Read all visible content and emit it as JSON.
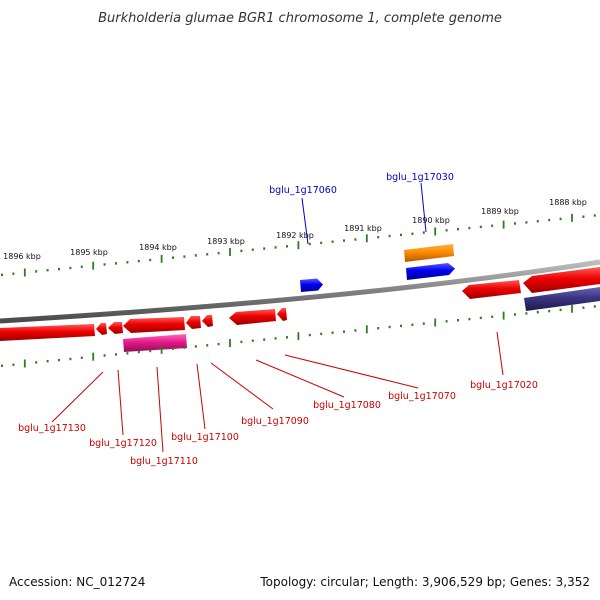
{
  "title": "Burkholderia glumae BGR1 chromosome 1, complete genome",
  "footer": {
    "accession": "Accession: NC_012724",
    "info": "Topology: circular; Length: 3,906,529 bp; Genes: 3,352"
  },
  "colors": {
    "reverse_gene": "#ff0000",
    "forward_gene": "#0000ff",
    "highlight_forward": "#ff8c00",
    "highlight_reverse": "#e6198c",
    "other_reverse": "#3a3582",
    "backbone": "#808080",
    "tick": "#2e7d1e",
    "label_forward": "#0000cc",
    "label_reverse": "#cc0000"
  },
  "kbp_labels": [
    "1896 kbp",
    "1895 kbp",
    "1894 kbp",
    "1893 kbp",
    "1892 kbp",
    "1891 kbp",
    "1890 kbp",
    "1889 kbp",
    "1888 kbp"
  ],
  "genes": [
    {
      "id": "bglu_1g17060",
      "strand": "forward"
    },
    {
      "id": "bglu_1g17030",
      "strand": "forward"
    },
    {
      "id": "bglu_1g17020",
      "strand": "reverse"
    },
    {
      "id": "bglu_1g17070",
      "strand": "reverse"
    },
    {
      "id": "bglu_1g17080",
      "strand": "reverse"
    },
    {
      "id": "bglu_1g17090",
      "strand": "reverse"
    },
    {
      "id": "bglu_1g17100",
      "strand": "reverse"
    },
    {
      "id": "bglu_1g17110",
      "strand": "reverse"
    },
    {
      "id": "bglu_1g17120",
      "strand": "reverse"
    },
    {
      "id": "bglu_1g17130",
      "strand": "reverse"
    }
  ]
}
